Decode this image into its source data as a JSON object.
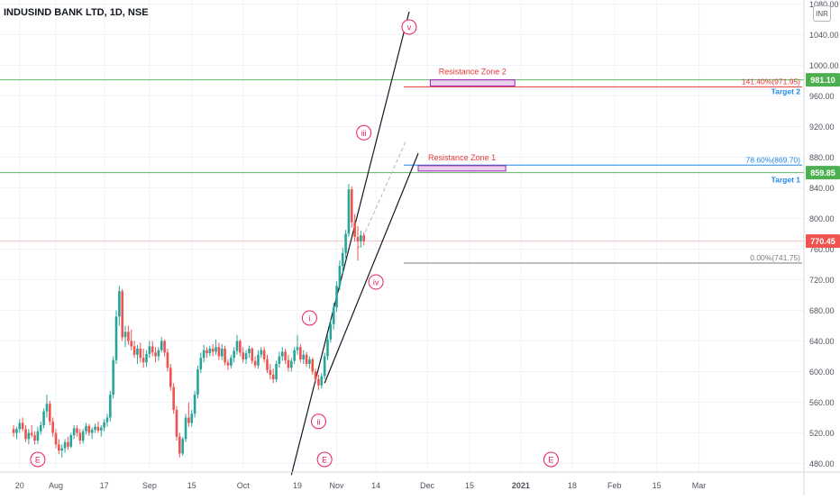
{
  "header": {
    "symbol_title": "INDUSIND BANK LTD, 1D, NSE",
    "currency_button": "INR"
  },
  "colors": {
    "up": "#26a69a",
    "down": "#ef5350",
    "grid": "#f0f3fa",
    "wave_label": "#e91e63",
    "resistance": "#9c27b0",
    "fib_red": "#e53935",
    "green_line": "#4caf50",
    "blue_text": "#2962ff"
  },
  "chart_data": {
    "type": "candlestick",
    "title": "INDUSIND BANK LTD, 1D, NSE",
    "y_ticks": [
      480,
      520,
      560,
      600,
      640,
      680,
      720,
      760,
      800,
      840,
      880,
      920,
      960,
      1000,
      1040,
      1080
    ],
    "y_tick_labels": [
      "480.00",
      "520.00",
      "560.00",
      "600.00",
      "640.00",
      "680.00",
      "720.00",
      "760.00",
      "800.00",
      "840.00",
      "880.00",
      "920.00",
      "960.00",
      "1000.00",
      "1040.00",
      "1080.00"
    ],
    "ylim": [
      465,
      1085
    ],
    "x_tick_labels": [
      "20",
      "Aug",
      "17",
      "Sep",
      "15",
      "Oct",
      "19",
      "Nov",
      "14",
      "Dec",
      "15",
      "2021",
      "18",
      "Feb",
      "15",
      "Mar"
    ],
    "x_tick_bold": [
      "2021"
    ],
    "x_tick_days": [
      -12,
      0,
      16,
      31,
      45,
      62,
      80,
      93,
      106,
      123,
      137,
      154,
      171,
      185,
      199,
      213
    ],
    "price_levels": [
      {
        "label": "981.10",
        "value": 981.1,
        "color": "#4caf50"
      },
      {
        "label": "859.85",
        "value": 859.85,
        "color": "#4caf50"
      },
      {
        "label": "770.45",
        "value": 770.45,
        "color": "#ef5350"
      }
    ],
    "fib_levels": [
      {
        "label": "141.40%(971.95)",
        "value": 971.95
      },
      {
        "label": "78.60%(869.70)",
        "value": 869.7
      },
      {
        "label": "0.00%(741.75)",
        "value": 741.75
      }
    ],
    "targets": [
      {
        "label": "Target 2",
        "value": 971.95
      },
      {
        "label": "Target 1",
        "value": 840
      }
    ],
    "resistance_zones": [
      {
        "label": "Resistance Zone 2",
        "day_start": 124,
        "day_end": 152,
        "low": 973,
        "high": 981
      },
      {
        "label": "Resistance Zone 1",
        "day_start": 120,
        "day_end": 149,
        "low": 862,
        "high": 869
      }
    ],
    "wave_labels": [
      {
        "text": "i",
        "day": 84,
        "price": 670
      },
      {
        "text": "ii",
        "day": 87,
        "price": 535
      },
      {
        "text": "iii",
        "day": 102,
        "price": 912
      },
      {
        "text": "iv",
        "day": 106,
        "price": 717
      },
      {
        "text": "v",
        "day": 117,
        "price": 1050
      }
    ],
    "event_markers": [
      {
        "text": "E",
        "day": -6
      },
      {
        "text": "E",
        "day": 89
      },
      {
        "text": "E",
        "day": 164
      }
    ],
    "channel_lines": [
      {
        "d1": 78,
        "p1": 465,
        "d2": 117,
        "p2": 1070
      },
      {
        "d1": 89,
        "p1": 585,
        "d2": 120,
        "p2": 885
      }
    ],
    "candles": [
      {
        "day": -14,
        "o": 525,
        "h": 530,
        "l": 515,
        "c": 520
      },
      {
        "day": -13,
        "o": 520,
        "h": 528,
        "l": 512,
        "c": 525
      },
      {
        "day": -12,
        "o": 525,
        "h": 538,
        "l": 520,
        "c": 533
      },
      {
        "day": -11,
        "o": 533,
        "h": 540,
        "l": 522,
        "c": 525
      },
      {
        "day": -10,
        "o": 525,
        "h": 530,
        "l": 508,
        "c": 512
      },
      {
        "day": -9,
        "o": 512,
        "h": 525,
        "l": 505,
        "c": 520
      },
      {
        "day": -8,
        "o": 520,
        "h": 530,
        "l": 514,
        "c": 517
      },
      {
        "day": -7,
        "o": 517,
        "h": 522,
        "l": 505,
        "c": 510
      },
      {
        "day": -6,
        "o": 510,
        "h": 528,
        "l": 505,
        "c": 522
      },
      {
        "day": -5,
        "o": 522,
        "h": 535,
        "l": 518,
        "c": 530
      },
      {
        "day": -4,
        "o": 530,
        "h": 552,
        "l": 526,
        "c": 548
      },
      {
        "day": -3,
        "o": 548,
        "h": 570,
        "l": 540,
        "c": 558
      },
      {
        "day": -2,
        "o": 558,
        "h": 562,
        "l": 530,
        "c": 535
      },
      {
        "day": -1,
        "o": 535,
        "h": 540,
        "l": 515,
        "c": 520
      },
      {
        "day": 0,
        "o": 520,
        "h": 525,
        "l": 500,
        "c": 505
      },
      {
        "day": 1,
        "o": 505,
        "h": 512,
        "l": 492,
        "c": 497
      },
      {
        "day": 2,
        "o": 497,
        "h": 505,
        "l": 488,
        "c": 500
      },
      {
        "day": 3,
        "o": 500,
        "h": 512,
        "l": 494,
        "c": 508
      },
      {
        "day": 4,
        "o": 508,
        "h": 515,
        "l": 498,
        "c": 502
      },
      {
        "day": 5,
        "o": 502,
        "h": 520,
        "l": 500,
        "c": 517
      },
      {
        "day": 6,
        "o": 517,
        "h": 530,
        "l": 512,
        "c": 526
      },
      {
        "day": 7,
        "o": 526,
        "h": 530,
        "l": 515,
        "c": 520
      },
      {
        "day": 8,
        "o": 520,
        "h": 525,
        "l": 505,
        "c": 510
      },
      {
        "day": 9,
        "o": 510,
        "h": 525,
        "l": 506,
        "c": 522
      },
      {
        "day": 10,
        "o": 522,
        "h": 533,
        "l": 518,
        "c": 529
      },
      {
        "day": 11,
        "o": 529,
        "h": 532,
        "l": 516,
        "c": 520
      },
      {
        "day": 12,
        "o": 520,
        "h": 527,
        "l": 512,
        "c": 524
      },
      {
        "day": 13,
        "o": 524,
        "h": 532,
        "l": 520,
        "c": 528
      },
      {
        "day": 14,
        "o": 528,
        "h": 535,
        "l": 520,
        "c": 523
      },
      {
        "day": 15,
        "o": 523,
        "h": 530,
        "l": 515,
        "c": 527
      },
      {
        "day": 16,
        "o": 527,
        "h": 538,
        "l": 522,
        "c": 534
      },
      {
        "day": 17,
        "o": 534,
        "h": 545,
        "l": 528,
        "c": 540
      },
      {
        "day": 18,
        "o": 540,
        "h": 575,
        "l": 535,
        "c": 570
      },
      {
        "day": 19,
        "o": 570,
        "h": 620,
        "l": 565,
        "c": 615
      },
      {
        "day": 20,
        "o": 615,
        "h": 680,
        "l": 610,
        "c": 672
      },
      {
        "day": 21,
        "o": 672,
        "h": 712,
        "l": 660,
        "c": 705
      },
      {
        "day": 22,
        "o": 705,
        "h": 708,
        "l": 640,
        "c": 645
      },
      {
        "day": 23,
        "o": 645,
        "h": 660,
        "l": 632,
        "c": 652
      },
      {
        "day": 24,
        "o": 652,
        "h": 660,
        "l": 635,
        "c": 640
      },
      {
        "day": 25,
        "o": 640,
        "h": 655,
        "l": 628,
        "c": 633
      },
      {
        "day": 26,
        "o": 633,
        "h": 640,
        "l": 618,
        "c": 622
      },
      {
        "day": 27,
        "o": 622,
        "h": 635,
        "l": 610,
        "c": 630
      },
      {
        "day": 28,
        "o": 630,
        "h": 638,
        "l": 612,
        "c": 618
      },
      {
        "day": 29,
        "o": 618,
        "h": 630,
        "l": 605,
        "c": 612
      },
      {
        "day": 30,
        "o": 612,
        "h": 628,
        "l": 606,
        "c": 623
      },
      {
        "day": 31,
        "o": 623,
        "h": 640,
        "l": 618,
        "c": 633
      },
      {
        "day": 32,
        "o": 633,
        "h": 640,
        "l": 620,
        "c": 625
      },
      {
        "day": 33,
        "o": 625,
        "h": 632,
        "l": 612,
        "c": 620
      },
      {
        "day": 34,
        "o": 620,
        "h": 632,
        "l": 614,
        "c": 628
      },
      {
        "day": 35,
        "o": 628,
        "h": 645,
        "l": 625,
        "c": 640
      },
      {
        "day": 36,
        "o": 640,
        "h": 642,
        "l": 620,
        "c": 625
      },
      {
        "day": 37,
        "o": 625,
        "h": 630,
        "l": 600,
        "c": 605
      },
      {
        "day": 38,
        "o": 605,
        "h": 610,
        "l": 575,
        "c": 580
      },
      {
        "day": 39,
        "o": 580,
        "h": 585,
        "l": 545,
        "c": 550
      },
      {
        "day": 40,
        "o": 550,
        "h": 555,
        "l": 510,
        "c": 515
      },
      {
        "day": 41,
        "o": 515,
        "h": 520,
        "l": 488,
        "c": 493
      },
      {
        "day": 42,
        "o": 493,
        "h": 515,
        "l": 490,
        "c": 512
      },
      {
        "day": 43,
        "o": 512,
        "h": 545,
        "l": 508,
        "c": 540
      },
      {
        "day": 44,
        "o": 540,
        "h": 560,
        "l": 528,
        "c": 533
      },
      {
        "day": 45,
        "o": 533,
        "h": 550,
        "l": 528,
        "c": 545
      },
      {
        "day": 46,
        "o": 545,
        "h": 575,
        "l": 540,
        "c": 570
      },
      {
        "day": 47,
        "o": 570,
        "h": 608,
        "l": 565,
        "c": 603
      },
      {
        "day": 48,
        "o": 603,
        "h": 625,
        "l": 598,
        "c": 618
      },
      {
        "day": 49,
        "o": 618,
        "h": 635,
        "l": 612,
        "c": 628
      },
      {
        "day": 50,
        "o": 628,
        "h": 632,
        "l": 618,
        "c": 624
      },
      {
        "day": 51,
        "o": 624,
        "h": 634,
        "l": 620,
        "c": 630
      },
      {
        "day": 52,
        "o": 630,
        "h": 636,
        "l": 620,
        "c": 626
      },
      {
        "day": 53,
        "o": 626,
        "h": 642,
        "l": 622,
        "c": 632
      },
      {
        "day": 54,
        "o": 632,
        "h": 638,
        "l": 615,
        "c": 620
      },
      {
        "day": 55,
        "o": 620,
        "h": 636,
        "l": 615,
        "c": 630
      },
      {
        "day": 56,
        "o": 630,
        "h": 634,
        "l": 608,
        "c": 612
      },
      {
        "day": 57,
        "o": 612,
        "h": 616,
        "l": 602,
        "c": 608
      },
      {
        "day": 58,
        "o": 608,
        "h": 622,
        "l": 604,
        "c": 618
      },
      {
        "day": 59,
        "o": 618,
        "h": 632,
        "l": 612,
        "c": 627
      },
      {
        "day": 60,
        "o": 627,
        "h": 648,
        "l": 622,
        "c": 640
      },
      {
        "day": 61,
        "o": 640,
        "h": 642,
        "l": 620,
        "c": 625
      },
      {
        "day": 62,
        "o": 625,
        "h": 632,
        "l": 612,
        "c": 616
      },
      {
        "day": 63,
        "o": 616,
        "h": 628,
        "l": 610,
        "c": 624
      },
      {
        "day": 64,
        "o": 624,
        "h": 634,
        "l": 618,
        "c": 630
      },
      {
        "day": 65,
        "o": 630,
        "h": 632,
        "l": 610,
        "c": 614
      },
      {
        "day": 66,
        "o": 614,
        "h": 620,
        "l": 605,
        "c": 608
      },
      {
        "day": 67,
        "o": 608,
        "h": 628,
        "l": 604,
        "c": 622
      },
      {
        "day": 68,
        "o": 622,
        "h": 632,
        "l": 618,
        "c": 628
      },
      {
        "day": 69,
        "o": 628,
        "h": 632,
        "l": 612,
        "c": 616
      },
      {
        "day": 70,
        "o": 616,
        "h": 622,
        "l": 598,
        "c": 602
      },
      {
        "day": 71,
        "o": 602,
        "h": 610,
        "l": 590,
        "c": 596
      },
      {
        "day": 72,
        "o": 596,
        "h": 604,
        "l": 585,
        "c": 590
      },
      {
        "day": 73,
        "o": 590,
        "h": 614,
        "l": 586,
        "c": 610
      },
      {
        "day": 74,
        "o": 610,
        "h": 626,
        "l": 605,
        "c": 620
      }
    ],
    "candles_2": [
      {
        "day": 75,
        "o": 620,
        "h": 632,
        "l": 614,
        "c": 626
      },
      {
        "day": 76,
        "o": 626,
        "h": 630,
        "l": 610,
        "c": 615
      },
      {
        "day": 77,
        "o": 615,
        "h": 622,
        "l": 600,
        "c": 605
      },
      {
        "day": 78,
        "o": 605,
        "h": 618,
        "l": 600,
        "c": 614
      },
      {
        "day": 79,
        "o": 614,
        "h": 632,
        "l": 610,
        "c": 628
      },
      {
        "day": 80,
        "o": 628,
        "h": 648,
        "l": 622,
        "c": 632
      },
      {
        "day": 81,
        "o": 632,
        "h": 636,
        "l": 612,
        "c": 616
      },
      {
        "day": 82,
        "o": 616,
        "h": 628,
        "l": 610,
        "c": 622
      },
      {
        "day": 83,
        "o": 622,
        "h": 626,
        "l": 606,
        "c": 610
      },
      {
        "day": 84,
        "o": 610,
        "h": 620,
        "l": 604,
        "c": 616
      },
      {
        "day": 85,
        "o": 616,
        "h": 618,
        "l": 596,
        "c": 600
      },
      {
        "day": 86,
        "o": 600,
        "h": 604,
        "l": 585,
        "c": 590
      },
      {
        "day": 87,
        "o": 590,
        "h": 596,
        "l": 576,
        "c": 582
      },
      {
        "day": 88,
        "o": 582,
        "h": 598,
        "l": 578,
        "c": 594
      },
      {
        "day": 89,
        "o": 594,
        "h": 625,
        "l": 590,
        "c": 620
      },
      {
        "day": 90,
        "o": 620,
        "h": 648,
        "l": 615,
        "c": 642
      },
      {
        "day": 91,
        "o": 642,
        "h": 668,
        "l": 638,
        "c": 662
      },
      {
        "day": 92,
        "o": 662,
        "h": 690,
        "l": 655,
        "c": 684
      },
      {
        "day": 93,
        "o": 684,
        "h": 718,
        "l": 678,
        "c": 712
      },
      {
        "day": 94,
        "o": 712,
        "h": 745,
        "l": 706,
        "c": 738
      },
      {
        "day": 95,
        "o": 738,
        "h": 762,
        "l": 728,
        "c": 755
      },
      {
        "day": 96,
        "o": 755,
        "h": 785,
        "l": 748,
        "c": 780
      },
      {
        "day": 97,
        "o": 780,
        "h": 845,
        "l": 776,
        "c": 838
      },
      {
        "day": 98,
        "o": 838,
        "h": 842,
        "l": 788,
        "c": 795
      },
      {
        "day": 99,
        "o": 795,
        "h": 806,
        "l": 770,
        "c": 776
      },
      {
        "day": 100,
        "o": 776,
        "h": 790,
        "l": 745,
        "c": 770
      },
      {
        "day": 101,
        "o": 770,
        "h": 784,
        "l": 762,
        "c": 778
      },
      {
        "day": 102,
        "o": 778,
        "h": 782,
        "l": 765,
        "c": 770.45
      }
    ]
  }
}
